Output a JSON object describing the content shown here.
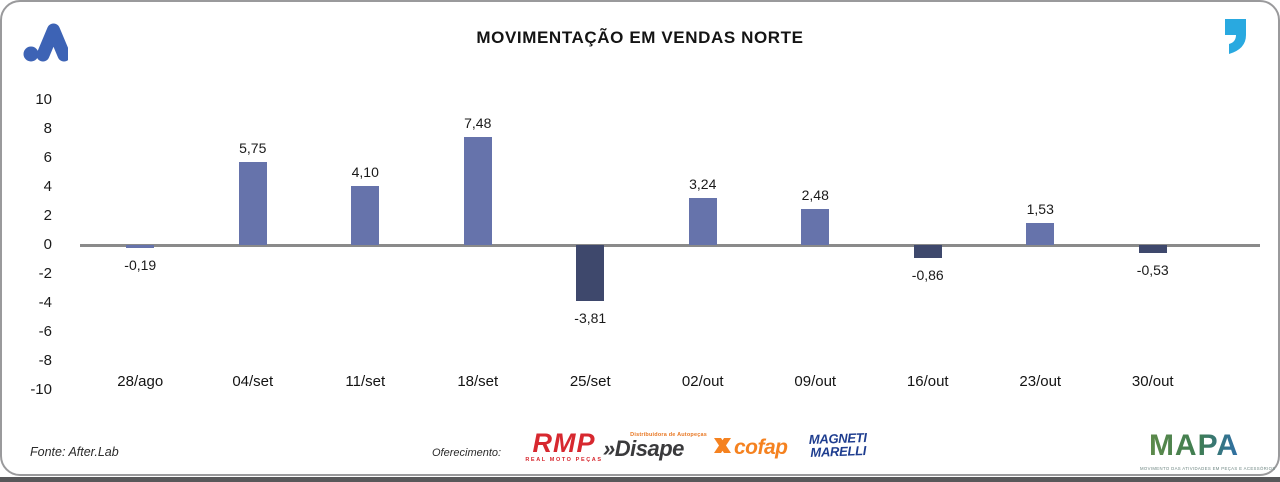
{
  "header": {
    "title": "MOVIMENTAÇÃO EM VENDAS NORTE",
    "logo_icon": "afterlab-mark-icon",
    "logo_color": "#3d63b5",
    "quote_icon_color": "#29a9e0"
  },
  "chart_data": {
    "type": "bar",
    "title": "MOVIMENTAÇÃO EM VENDAS NORTE",
    "categories": [
      "28/ago",
      "04/set",
      "11/set",
      "18/set",
      "25/set",
      "02/out",
      "09/out",
      "16/out",
      "23/out",
      "30/out"
    ],
    "values": [
      -0.19,
      5.75,
      4.1,
      7.48,
      -3.81,
      3.24,
      2.48,
      -0.86,
      1.53,
      -0.53
    ],
    "value_labels": [
      "-0,19",
      "5,75",
      "4,10",
      "7,48",
      "-3,81",
      "3,24",
      "2,48",
      "-0,86",
      "1,53",
      "-0,53"
    ],
    "bar_variants": [
      "light",
      "light",
      "light",
      "light",
      "dark",
      "light",
      "light",
      "dark",
      "light",
      "dark"
    ],
    "colors": {
      "light": "#6673ab",
      "dark": "#3e486c",
      "axis_line": "#8a8a8a"
    },
    "ylim": [
      -10,
      10
    ],
    "yticks": [
      10,
      8,
      6,
      4,
      2,
      0,
      -2,
      -4,
      -6,
      -8,
      -10
    ],
    "grid": false,
    "legend": null,
    "decimal_separator": ","
  },
  "footer": {
    "source": "Fonte: After.Lab",
    "sponsor_label": "Oferecimento:",
    "sponsors": {
      "rmp": {
        "name": "RMP",
        "subtitle": "REAL MOTO PEÇAS",
        "color": "#d7282f"
      },
      "disape": {
        "name": "»Disape",
        "subtitle": "Distribuidora de Autopeças",
        "color": "#3a3a3c",
        "accent": "#e87722"
      },
      "cofap": {
        "name": "cofap",
        "color": "#f58220"
      },
      "magneti": {
        "line1": "MAGNETI",
        "line2": "MARELLI",
        "color": "#1e3d8f"
      }
    },
    "mapa": {
      "name": "MAPA",
      "subtitle": "MOVIMENTO DAS ATIVIDADES EM PEÇAS E ACESSÓRIOS",
      "subtitle_color": "#6f8783"
    }
  }
}
